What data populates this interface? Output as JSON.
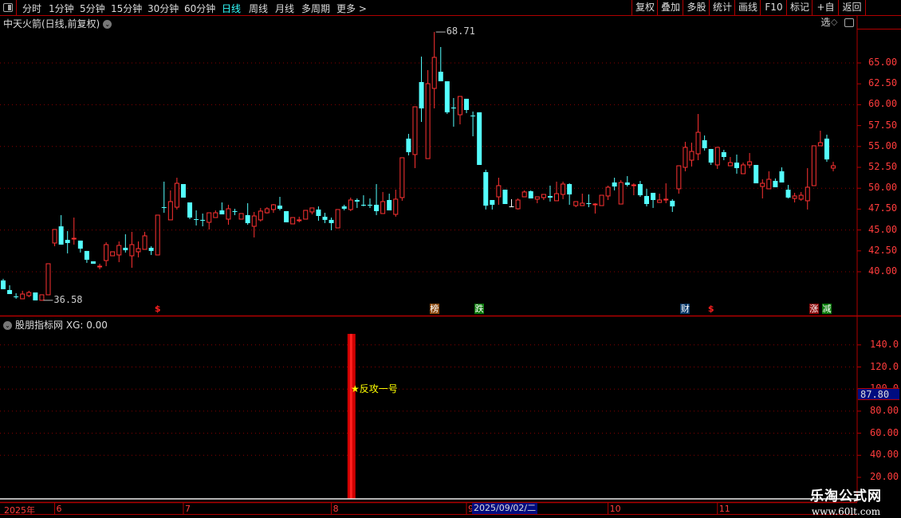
{
  "toolbar": {
    "periods": [
      "分时",
      "1分钟",
      "5分钟",
      "15分钟",
      "30分钟",
      "60分钟",
      "日线",
      "周线",
      "月线",
      "多周期",
      "更多 >"
    ],
    "active_period": "日线",
    "actions": [
      "复权",
      "叠加",
      "多股",
      "统计",
      "画线",
      "F10",
      "标记",
      "+自选",
      "返回"
    ]
  },
  "stock": {
    "title": "中天火箭(日线,前复权)"
  },
  "colors": {
    "up": "#ff3232",
    "down": "#54ffff",
    "grid": "#8a0000",
    "axis": "#ff3c3c",
    "accent_active": "#33ffff"
  },
  "chart_data": {
    "type": "candlestick",
    "y_ticks": [
      "65.00",
      "62.50",
      "60.00",
      "57.50",
      "55.00",
      "52.50",
      "50.00",
      "47.50",
      "45.00",
      "42.50",
      "40.00"
    ],
    "ylim": [
      36.0,
      70.6
    ],
    "grid": "dotted every 5.00",
    "ohlc_order": [
      "open",
      "high",
      "low",
      "close"
    ],
    "candles": [
      [
        38.96,
        39.15,
        37.91,
        37.91
      ],
      [
        37.81,
        38.38,
        37.33,
        37.33
      ],
      [
        37.05,
        37.43,
        36.76,
        36.95
      ],
      [
        36.76,
        37.72,
        36.76,
        37.33
      ],
      [
        37.14,
        37.72,
        36.95,
        37.52
      ],
      [
        37.52,
        37.52,
        36.57,
        36.57
      ],
      [
        36.58,
        37.24,
        36.58,
        37.24
      ],
      [
        37.24,
        40.96,
        37.24,
        40.96
      ],
      [
        43.44,
        45.06,
        43.06,
        45.06
      ],
      [
        45.44,
        46.78,
        43.25,
        43.25
      ],
      [
        43.82,
        44.87,
        42.2,
        43.44
      ],
      [
        43.92,
        46.49,
        43.25,
        44.01
      ],
      [
        43.73,
        43.73,
        42.3,
        42.77
      ],
      [
        42.49,
        42.49,
        41.06,
        41.44
      ],
      [
        41.25,
        41.25,
        40.96,
        40.96
      ],
      [
        40.58,
        40.96,
        40.29,
        40.67
      ],
      [
        41.34,
        43.54,
        40.67,
        43.25
      ],
      [
        41.91,
        42.39,
        41.91,
        42.39
      ],
      [
        42.01,
        43.63,
        41.15,
        43.15
      ],
      [
        42.87,
        44.49,
        42.3,
        42.58
      ],
      [
        41.91,
        44.78,
        40.48,
        43.25
      ],
      [
        42.39,
        43.63,
        41.72,
        42.77
      ],
      [
        42.68,
        44.78,
        42.68,
        44.3
      ],
      [
        42.87,
        43.06,
        42.01,
        42.49
      ],
      [
        42.01,
        46.78,
        42.01,
        46.78
      ],
      [
        47.73,
        50.79,
        47.06,
        47.64
      ],
      [
        46.21,
        49.74,
        46.21,
        48.4
      ],
      [
        47.73,
        51.26,
        47.45,
        50.59
      ],
      [
        50.5,
        50.5,
        48.88,
        48.88
      ],
      [
        48.3,
        48.3,
        46.3,
        46.49
      ],
      [
        46.3,
        47.35,
        45.54,
        46.21
      ],
      [
        46.21,
        46.97,
        45.44,
        46.11
      ],
      [
        45.92,
        47.06,
        45.06,
        47.06
      ],
      [
        46.49,
        47.35,
        46.49,
        47.06
      ],
      [
        47.35,
        48.3,
        46.87,
        46.87
      ],
      [
        46.3,
        48.02,
        45.63,
        47.54
      ],
      [
        47.26,
        47.54,
        46.78,
        47.16
      ],
      [
        46.3,
        46.97,
        46.3,
        46.97
      ],
      [
        46.78,
        48.21,
        45.63,
        45.82
      ],
      [
        45.44,
        47.16,
        44.11,
        46.68
      ],
      [
        46.21,
        47.64,
        46.02,
        47.26
      ],
      [
        47.06,
        47.73,
        46.97,
        47.54
      ],
      [
        47.45,
        48.11,
        47.06,
        48.02
      ],
      [
        47.92,
        48.97,
        47.35,
        47.54
      ],
      [
        47.26,
        47.26,
        45.92,
        45.92
      ],
      [
        45.73,
        46.49,
        45.73,
        46.49
      ],
      [
        46.11,
        46.59,
        45.92,
        46.21
      ],
      [
        46.3,
        47.35,
        46.3,
        47.35
      ],
      [
        47.16,
        47.64,
        46.87,
        47.64
      ],
      [
        47.45,
        47.83,
        46.11,
        46.68
      ],
      [
        46.59,
        47.06,
        45.82,
        46.21
      ],
      [
        46.21,
        46.49,
        44.97,
        45.82
      ],
      [
        45.25,
        47.45,
        45.25,
        47.45
      ],
      [
        47.83,
        48.02,
        47.35,
        47.54
      ],
      [
        47.45,
        48.88,
        47.26,
        48.59
      ],
      [
        48.59,
        48.78,
        47.64,
        48.4
      ],
      [
        48.02,
        49.16,
        47.83,
        47.92
      ],
      [
        48.02,
        48.78,
        47.64,
        47.92
      ],
      [
        48.02,
        50.5,
        46.78,
        47.26
      ],
      [
        46.97,
        49.55,
        46.97,
        48.4
      ],
      [
        48.59,
        49.35,
        47.35,
        47.35
      ],
      [
        46.87,
        49.83,
        46.59,
        48.69
      ],
      [
        48.88,
        53.65,
        48.5,
        53.65
      ],
      [
        55.94,
        56.51,
        53.93,
        54.32
      ],
      [
        54.03,
        59.75,
        52.41,
        59.75
      ],
      [
        62.71,
        65.76,
        57.94,
        59.56
      ],
      [
        53.55,
        64.14,
        53.55,
        62.52
      ],
      [
        61.95,
        68.71,
        59.56,
        65.67
      ],
      [
        63.95,
        66.91,
        62.81,
        62.81
      ],
      [
        62.81,
        62.81,
        58.89,
        59.09
      ],
      [
        59.66,
        60.8,
        57.37,
        59.56
      ],
      [
        58.8,
        60.99,
        57.65,
        60.99
      ],
      [
        60.71,
        60.71,
        58.99,
        59.37
      ],
      [
        58.7,
        59.18,
        56.22,
        58.61
      ],
      [
        59.09,
        59.09,
        52.79,
        52.79
      ],
      [
        51.93,
        52.22,
        47.45,
        47.92
      ],
      [
        48.59,
        48.59,
        47.45,
        48.02
      ],
      [
        48.97,
        51.26,
        48.02,
        50.31
      ],
      [
        49.83,
        49.83,
        48.11,
        48.11
      ],
      [
        47.83,
        48.69,
        47.83,
        47.83
      ],
      [
        47.54,
        48.78,
        47.45,
        48.59
      ],
      [
        48.97,
        49.74,
        48.97,
        49.55
      ],
      [
        49.64,
        49.74,
        48.78,
        48.78
      ],
      [
        48.69,
        48.97,
        48.21,
        48.97
      ],
      [
        48.88,
        49.26,
        48.59,
        49.26
      ],
      [
        49.07,
        50.31,
        48.4,
        48.88
      ],
      [
        48.5,
        50.79,
        48.5,
        49.35
      ],
      [
        49.26,
        50.79,
        48.69,
        50.5
      ],
      [
        50.5,
        50.59,
        48.02,
        49.26
      ],
      [
        47.92,
        48.4,
        47.73,
        48.4
      ],
      [
        47.92,
        49.35,
        47.92,
        48.21
      ],
      [
        48.21,
        49.26,
        47.73,
        48.11
      ],
      [
        48.02,
        48.21,
        46.97,
        48.11
      ],
      [
        47.92,
        49.16,
        47.92,
        49.16
      ],
      [
        49.07,
        50.31,
        48.59,
        50.12
      ],
      [
        50.69,
        51.26,
        49.74,
        50.21
      ],
      [
        48.11,
        50.98,
        48.11,
        50.69
      ],
      [
        50.69,
        51.45,
        50.21,
        50.4
      ],
      [
        50.31,
        50.59,
        49.16,
        50.4
      ],
      [
        50.5,
        50.88,
        48.97,
        49.16
      ],
      [
        49.07,
        49.93,
        47.83,
        48.11
      ],
      [
        49.45,
        49.45,
        47.64,
        48.59
      ],
      [
        48.3,
        49.35,
        48.3,
        48.59
      ],
      [
        48.59,
        50.59,
        48.21,
        48.69
      ],
      [
        48.5,
        48.69,
        47.16,
        47.83
      ],
      [
        49.93,
        52.69,
        49.35,
        52.69
      ],
      [
        52.5,
        55.56,
        52.03,
        54.89
      ],
      [
        53.36,
        55.46,
        52.6,
        54.41
      ],
      [
        54.12,
        58.89,
        53.36,
        56.7
      ],
      [
        55.75,
        56.32,
        54.51,
        54.79
      ],
      [
        54.7,
        54.7,
        52.79,
        53.07
      ],
      [
        52.79,
        54.89,
        52.31,
        54.89
      ],
      [
        54.32,
        54.6,
        53.36,
        53.74
      ],
      [
        52.69,
        53.74,
        52.69,
        53.07
      ],
      [
        53.07,
        54.03,
        51.74,
        52.41
      ],
      [
        51.74,
        53.07,
        51.74,
        52.79
      ],
      [
        52.79,
        54.22,
        52.41,
        53.17
      ],
      [
        52.79,
        52.79,
        50.59,
        50.59
      ],
      [
        50.21,
        51.07,
        48.78,
        50.59
      ],
      [
        49.93,
        52.03,
        49.93,
        51.07
      ],
      [
        50.88,
        51.17,
        50.12,
        50.12
      ],
      [
        52.03,
        52.5,
        50.69,
        50.69
      ],
      [
        49.83,
        50.4,
        48.78,
        48.88
      ],
      [
        48.78,
        49.45,
        48.3,
        49.07
      ],
      [
        48.69,
        49.55,
        48.5,
        49.16
      ],
      [
        48.5,
        52.41,
        47.45,
        50.12
      ],
      [
        50.31,
        55.08,
        50.31,
        55.08
      ],
      [
        55.08,
        56.89,
        55.08,
        55.46
      ],
      [
        55.94,
        56.41,
        53.17,
        53.45
      ],
      [
        52.41,
        53.17,
        52.03,
        52.69
      ]
    ],
    "annotations": [
      {
        "label": "68.71",
        "candle": 67,
        "kind": "high"
      },
      {
        "label": "36.58",
        "candle": 6,
        "kind": "low"
      }
    ],
    "markers": [
      {
        "text": "$",
        "candle": 24,
        "style": "dollar"
      },
      {
        "text": "榜",
        "candle": 67,
        "bg": "#8a4a10"
      },
      {
        "text": "跌",
        "candle": 74,
        "bg": "#0a7a0a"
      },
      {
        "text": "财",
        "candle": 106,
        "bg": "#0a3a6a"
      },
      {
        "text": "$",
        "candle": 110,
        "style": "dollar"
      },
      {
        "text": "涨",
        "candle": 126,
        "bg": "#8a0a0a"
      },
      {
        "text": "减",
        "candle": 128,
        "bg": "#0a7a0a"
      }
    ]
  },
  "indicator": {
    "name": "股朋指标网",
    "readout": "XG: 0.00",
    "y_ticks": [
      "140.0",
      "120.0",
      "100.0",
      "80.00",
      "60.00",
      "40.00",
      "20.00"
    ],
    "ylim": [
      0,
      150
    ],
    "current_value": "87.80",
    "bar": {
      "candle": 54,
      "value": 150
    },
    "signal_text": "★反攻一号",
    "signal_color": "#ffff00"
  },
  "time_axis": {
    "year_label": "2025年",
    "months": [
      {
        "label": "6",
        "candle": 8
      },
      {
        "label": "7",
        "candle": 28
      },
      {
        "label": "8",
        "candle": 51
      },
      {
        "label": "9",
        "candle": 72
      },
      {
        "label": "10",
        "candle": 94
      },
      {
        "label": "11",
        "candle": 111
      }
    ],
    "cursor_date": "2025/09/02/二"
  },
  "watermark": {
    "line1": "乐淘公式网",
    "line2": "www.60lt.com"
  }
}
